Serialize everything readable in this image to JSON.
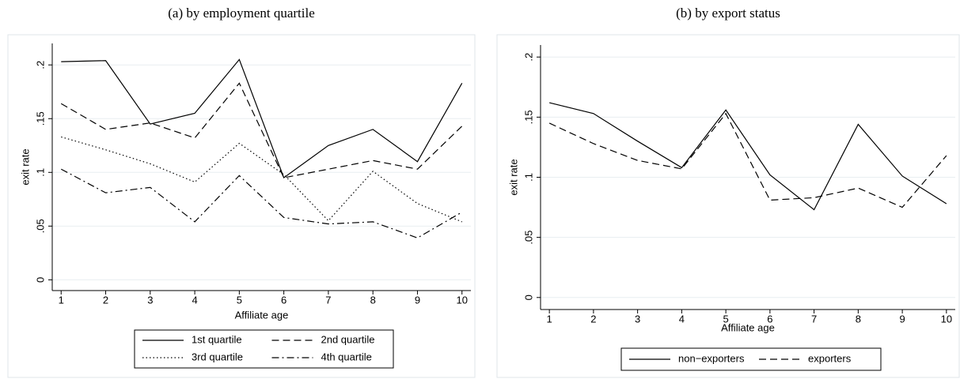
{
  "chart_data": [
    {
      "type": "line",
      "title": "(a) by employment quartile",
      "x_label": "Affiliate age",
      "y_label": "exit rate",
      "x": [
        1,
        2,
        3,
        4,
        5,
        6,
        7,
        8,
        9,
        10
      ],
      "xlim": [
        0.8,
        10.2
      ],
      "xticks": [
        1,
        2,
        3,
        4,
        5,
        6,
        7,
        8,
        9,
        10
      ],
      "ylim": [
        -0.01,
        0.22
      ],
      "yticks": [
        0,
        {
          "value": 0.05,
          "label": ".05"
        },
        {
          "value": 0.1,
          "label": ".1"
        },
        {
          "value": 0.15,
          "label": ".15"
        },
        {
          "value": 0.2,
          "label": ".2"
        }
      ],
      "grid": true,
      "legend": "bottom",
      "series": [
        {
          "name": "1st quartile",
          "color": "#000000",
          "dash": "solid",
          "values": [
            0.203,
            0.204,
            0.145,
            0.155,
            0.205,
            0.095,
            0.125,
            0.14,
            0.11,
            0.183
          ]
        },
        {
          "name": "2nd quartile",
          "color": "#000000",
          "dash": "dashed",
          "values": [
            0.164,
            0.14,
            0.146,
            0.132,
            0.183,
            0.095,
            0.103,
            0.111,
            0.103,
            0.143
          ]
        },
        {
          "name": "3rd quartile",
          "color": "#000000",
          "dash": "dotted",
          "values": [
            0.133,
            0.121,
            0.108,
            0.091,
            0.127,
            0.098,
            0.055,
            0.101,
            0.071,
            0.054
          ]
        },
        {
          "name": "4th quartile",
          "color": "#000000",
          "dash": "dashdot",
          "values": [
            0.103,
            0.081,
            0.086,
            0.054,
            0.097,
            0.058,
            0.052,
            0.054,
            0.039,
            0.063
          ]
        }
      ]
    },
    {
      "type": "line",
      "title": "(b) by export status",
      "x_label": "Affiliate age",
      "y_label": "exit rate",
      "x": [
        1,
        2,
        3,
        4,
        5,
        6,
        7,
        8,
        9,
        10
      ],
      "xlim": [
        0.8,
        10.2
      ],
      "xticks": [
        1,
        2,
        3,
        4,
        5,
        6,
        7,
        8,
        9,
        10
      ],
      "ylim": [
        -0.01,
        0.21
      ],
      "yticks": [
        0,
        {
          "value": 0.05,
          "label": ".05"
        },
        {
          "value": 0.1,
          "label": ".1"
        },
        {
          "value": 0.15,
          "label": ".15"
        },
        {
          "value": 0.2,
          "label": ".2"
        }
      ],
      "grid": true,
      "legend": "bottom",
      "series": [
        {
          "name": "non−exporters",
          "color": "#000000",
          "dash": "solid",
          "values": [
            0.162,
            0.153,
            0.13,
            0.108,
            0.156,
            0.102,
            0.073,
            0.144,
            0.101,
            0.078
          ]
        },
        {
          "name": "exporters",
          "color": "#000000",
          "dash": "dashed",
          "values": [
            0.145,
            0.128,
            0.114,
            0.107,
            0.153,
            0.081,
            0.083,
            0.091,
            0.075,
            0.118
          ]
        }
      ]
    }
  ]
}
